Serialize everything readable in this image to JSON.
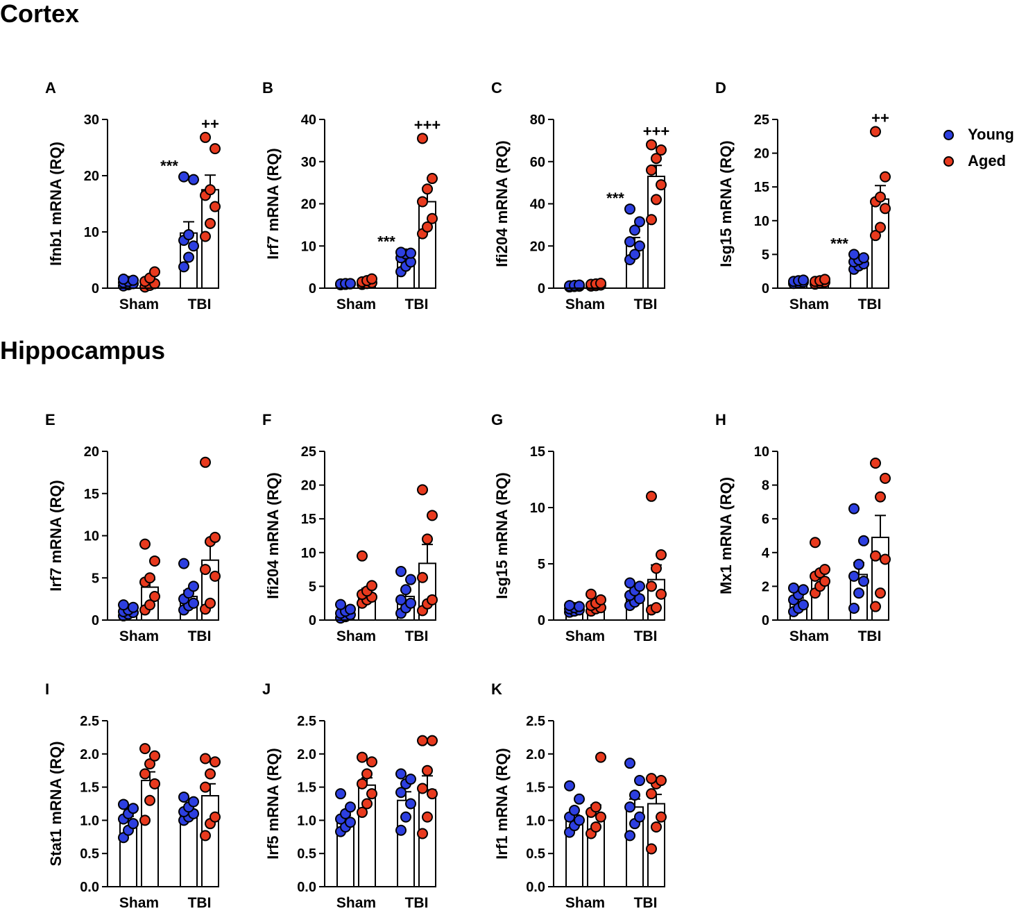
{
  "headings": {
    "cortex": "Cortex",
    "hippocampus": "Hippocampus"
  },
  "legend": [
    {
      "label": "Young",
      "color": "#2d3fe0"
    },
    {
      "label": "Aged",
      "color": "#e83a1e"
    }
  ],
  "colors": {
    "young": "#2d3fe0",
    "aged": "#e83a1e",
    "axis": "#000000",
    "bar_fill": "#ffffff"
  },
  "chart_data": [
    {
      "type": "bar",
      "panel": "A",
      "ylabel": "Ifnb1 mRNA (RQ)",
      "ylim": [
        0,
        30
      ],
      "yticks": [
        0,
        10,
        20,
        30
      ],
      "tick_labels": [
        "0",
        "10",
        "20",
        "30"
      ],
      "groups": [
        "Sham",
        "TBI"
      ],
      "series": [
        {
          "name": "Young",
          "means": [
            1.0,
            9.8
          ],
          "sem": [
            0.3,
            2.0
          ],
          "points": [
            [
              0.4,
              0.6,
              0.8,
              1.0,
              1.2,
              1.4,
              1.6
            ],
            [
              3.8,
              5.5,
              7.5,
              8.5,
              9.5,
              19.3,
              19.8
            ]
          ],
          "annotations": [
            "",
            "***"
          ]
        },
        {
          "name": "Aged",
          "means": [
            1.2,
            17.5
          ],
          "sem": [
            0.4,
            2.6
          ],
          "points": [
            [
              0.2,
              0.5,
              0.8,
              1.2,
              1.8,
              2.9
            ],
            [
              9.2,
              11.5,
              14.5,
              16.5,
              17.5,
              24.8,
              26.8
            ]
          ],
          "annotations": [
            "",
            "++"
          ]
        }
      ]
    },
    {
      "type": "bar",
      "panel": "B",
      "ylabel": "Irf7 mRNA (RQ)",
      "ylim": [
        0,
        40
      ],
      "yticks": [
        0,
        10,
        20,
        30,
        40
      ],
      "tick_labels": [
        "0",
        "10",
        "20",
        "30",
        "40"
      ],
      "groups": [
        "Sham",
        "TBI"
      ],
      "series": [
        {
          "name": "Young",
          "means": [
            1.0,
            6.3
          ],
          "sem": [
            0.1,
            0.7
          ],
          "points": [
            [
              0.8,
              0.9,
              1.0,
              1.0,
              1.1,
              1.1
            ],
            [
              3.9,
              5.2,
              6.2,
              7.2,
              8.1,
              8.3,
              8.5
            ]
          ],
          "annotations": [
            "",
            "***"
          ]
        },
        {
          "name": "Aged",
          "means": [
            1.4,
            20.5
          ],
          "sem": [
            0.2,
            3.2
          ],
          "points": [
            [
              0.9,
              1.1,
              1.3,
              1.5,
              1.8,
              2.2
            ],
            [
              12.9,
              14.5,
              16.5,
              20.5,
              23.5,
              26.0,
              35.5
            ]
          ],
          "annotations": [
            "",
            "+++"
          ]
        }
      ]
    },
    {
      "type": "bar",
      "panel": "C",
      "ylabel": "Ifi204 mRNA (RQ)",
      "ylim": [
        0,
        80
      ],
      "yticks": [
        0,
        20,
        40,
        60,
        80
      ],
      "tick_labels": [
        "0",
        "20",
        "40",
        "60",
        "80"
      ],
      "groups": [
        "Sham",
        "TBI"
      ],
      "series": [
        {
          "name": "Young",
          "means": [
            1.0,
            21.0
          ],
          "sem": [
            0.2,
            3.0
          ],
          "points": [
            [
              0.6,
              0.8,
              0.9,
              1.1,
              1.3,
              1.5
            ],
            [
              13.5,
              16.0,
              20.0,
              22.0,
              27.5,
              31.5,
              37.5
            ]
          ],
          "annotations": [
            "",
            "***"
          ]
        },
        {
          "name": "Aged",
          "means": [
            1.6,
            53.0
          ],
          "sem": [
            0.3,
            5.2
          ],
          "points": [
            [
              1.0,
              1.2,
              1.5,
              1.8,
              2.0,
              2.3
            ],
            [
              32.5,
              42.0,
              49.0,
              56.0,
              61.5,
              65.5,
              68.0
            ]
          ],
          "annotations": [
            "",
            "+++"
          ]
        }
      ]
    },
    {
      "type": "bar",
      "panel": "D",
      "ylabel": "Isg15 mRNA (RQ)",
      "ylim": [
        0,
        25
      ],
      "yticks": [
        0,
        5,
        10,
        15,
        20,
        25
      ],
      "tick_labels": [
        "0",
        "5",
        "10",
        "15",
        "20",
        "25"
      ],
      "groups": [
        "Sham",
        "TBI"
      ],
      "series": [
        {
          "name": "Young",
          "means": [
            1.0,
            3.9
          ],
          "sem": [
            0.1,
            0.3
          ],
          "points": [
            [
              0.7,
              0.8,
              0.9,
              1.0,
              1.1,
              1.2
            ],
            [
              2.8,
              3.3,
              3.6,
              3.9,
              4.2,
              4.5,
              5.0
            ]
          ],
          "annotations": [
            "",
            "***"
          ]
        },
        {
          "name": "Aged",
          "means": [
            1.0,
            13.2
          ],
          "sem": [
            0.1,
            2.0
          ],
          "points": [
            [
              0.6,
              0.8,
              0.9,
              1.0,
              1.1,
              1.3
            ],
            [
              7.8,
              9.0,
              11.8,
              12.8,
              13.5,
              16.5,
              23.2
            ]
          ],
          "annotations": [
            "",
            "++"
          ]
        }
      ]
    },
    {
      "type": "bar",
      "panel": "E",
      "ylabel": "Irf7 mRNA (RQ)",
      "ylim": [
        0,
        20
      ],
      "yticks": [
        0,
        5,
        10,
        15,
        20
      ],
      "tick_labels": [
        "0",
        "5",
        "10",
        "15",
        "20"
      ],
      "groups": [
        "Sham",
        "TBI"
      ],
      "series": [
        {
          "name": "Young",
          "means": [
            1.0,
            2.8
          ],
          "sem": [
            0.2,
            0.7
          ],
          "points": [
            [
              0.5,
              0.7,
              0.9,
              1.0,
              1.2,
              1.5,
              1.8
            ],
            [
              1.2,
              1.7,
              2.0,
              2.5,
              3.2,
              4.0,
              6.7
            ]
          ],
          "annotations": [
            "",
            ""
          ]
        },
        {
          "name": "Aged",
          "means": [
            3.9,
            7.1
          ],
          "sem": [
            0.9,
            2.1
          ],
          "points": [
            [
              1.2,
              1.8,
              2.8,
              4.5,
              5.0,
              7.0,
              9.0
            ],
            [
              1.3,
              2.0,
              5.2,
              6.0,
              9.3,
              9.8,
              18.7
            ]
          ],
          "annotations": [
            "",
            ""
          ]
        }
      ]
    },
    {
      "type": "bar",
      "panel": "F",
      "ylabel": "Ifi204 mRNA (RQ)",
      "ylim": [
        0,
        25
      ],
      "yticks": [
        0,
        5,
        10,
        15,
        20,
        25
      ],
      "tick_labels": [
        "0",
        "5",
        "10",
        "15",
        "20",
        "25"
      ],
      "groups": [
        "Sham",
        "TBI"
      ],
      "series": [
        {
          "name": "Young",
          "means": [
            1.0,
            3.5
          ],
          "sem": [
            0.3,
            0.9
          ],
          "points": [
            [
              0.3,
              0.5,
              0.8,
              1.0,
              1.3,
              1.6,
              2.3
            ],
            [
              1.0,
              1.8,
              2.5,
              3.0,
              4.5,
              6.0,
              7.2
            ]
          ],
          "annotations": [
            "",
            ""
          ]
        },
        {
          "name": "Aged",
          "means": [
            3.9,
            8.4
          ],
          "sem": [
            0.8,
            2.8
          ],
          "points": [
            [
              2.5,
              3.0,
              3.4,
              3.8,
              4.3,
              5.1,
              9.5
            ],
            [
              1.4,
              2.4,
              3.0,
              6.3,
              12.0,
              15.5,
              19.3
            ]
          ],
          "annotations": [
            "",
            ""
          ]
        }
      ]
    },
    {
      "type": "bar",
      "panel": "G",
      "ylabel": "Isg15 mRNA (RQ)",
      "ylim": [
        0,
        15
      ],
      "yticks": [
        0,
        5,
        10,
        15
      ],
      "tick_labels": [
        "0",
        "5",
        "10",
        "15"
      ],
      "groups": [
        "Sham",
        "TBI"
      ],
      "series": [
        {
          "name": "Young",
          "means": [
            1.0,
            2.2
          ],
          "sem": [
            0.1,
            0.3
          ],
          "points": [
            [
              0.7,
              0.8,
              0.9,
              1.0,
              1.1,
              1.2,
              1.3
            ],
            [
              1.3,
              1.6,
              1.9,
              2.2,
              2.6,
              3.0,
              3.3
            ]
          ],
          "annotations": [
            "",
            ""
          ]
        },
        {
          "name": "Aged",
          "means": [
            1.3,
            3.6
          ],
          "sem": [
            0.2,
            1.3
          ],
          "points": [
            [
              0.8,
              1.0,
              1.1,
              1.3,
              1.5,
              1.8,
              2.3
            ],
            [
              0.9,
              1.1,
              2.3,
              3.0,
              4.6,
              5.8,
              11.0
            ]
          ],
          "annotations": [
            "",
            ""
          ]
        }
      ]
    },
    {
      "type": "bar",
      "panel": "H",
      "ylabel": "Mx1 mRNA (RQ)",
      "ylim": [
        0,
        10
      ],
      "yticks": [
        0,
        2,
        4,
        6,
        8,
        10
      ],
      "tick_labels": [
        "0",
        "2",
        "4",
        "6",
        "8",
        "10"
      ],
      "groups": [
        "Sham",
        "TBI"
      ],
      "series": [
        {
          "name": "Young",
          "means": [
            1.1,
            2.7
          ],
          "sem": [
            0.2,
            0.7
          ],
          "points": [
            [
              0.5,
              0.7,
              0.9,
              1.2,
              1.5,
              1.8,
              1.9
            ],
            [
              0.7,
              1.6,
              2.3,
              2.6,
              3.3,
              4.7,
              6.6
            ]
          ],
          "annotations": [
            "",
            ""
          ]
        },
        {
          "name": "Aged",
          "means": [
            2.5,
            4.9
          ],
          "sem": [
            0.3,
            1.3
          ],
          "points": [
            [
              1.6,
              2.0,
              2.3,
              2.6,
              2.8,
              3.0,
              4.6
            ],
            [
              0.8,
              1.6,
              3.6,
              3.8,
              7.3,
              8.4,
              9.3
            ]
          ],
          "annotations": [
            "",
            ""
          ]
        }
      ]
    },
    {
      "type": "bar",
      "panel": "I",
      "ylabel": "Stat1 mRNA (RQ)",
      "ylim": [
        0,
        2.5
      ],
      "yticks": [
        0,
        0.5,
        1.0,
        1.5,
        2.0,
        2.5
      ],
      "tick_labels": [
        "0.0",
        "0.5",
        "1.0",
        "1.5",
        "2.0",
        "2.5"
      ],
      "groups": [
        "Sham",
        "TBI"
      ],
      "series": [
        {
          "name": "Young",
          "means": [
            1.0,
            1.12
          ],
          "sem": [
            0.06,
            0.05
          ],
          "points": [
            [
              0.74,
              0.85,
              0.95,
              1.02,
              1.1,
              1.18,
              1.24
            ],
            [
              1.0,
              1.05,
              1.1,
              1.13,
              1.2,
              1.28,
              1.35
            ]
          ],
          "annotations": [
            "",
            ""
          ]
        },
        {
          "name": "Aged",
          "means": [
            1.6,
            1.37
          ],
          "sem": [
            0.13,
            0.18
          ],
          "points": [
            [
              1.0,
              1.3,
              1.55,
              1.7,
              1.85,
              1.97,
              2.08
            ],
            [
              0.77,
              0.95,
              1.05,
              1.5,
              1.7,
              1.88,
              1.93
            ]
          ],
          "annotations": [
            "",
            ""
          ]
        }
      ]
    },
    {
      "type": "bar",
      "panel": "J",
      "ylabel": "Irf5 mRNA (RQ)",
      "ylim": [
        0,
        2.5
      ],
      "yticks": [
        0,
        0.5,
        1.0,
        1.5,
        2.0,
        2.5
      ],
      "tick_labels": [
        "0.0",
        "0.5",
        "1.0",
        "1.5",
        "2.0",
        "2.5"
      ],
      "groups": [
        "Sham",
        "TBI"
      ],
      "series": [
        {
          "name": "Young",
          "means": [
            1.0,
            1.3
          ],
          "sem": [
            0.07,
            0.13
          ],
          "points": [
            [
              0.83,
              0.9,
              0.97,
              1.02,
              1.1,
              1.2,
              1.4
            ],
            [
              0.85,
              1.05,
              1.25,
              1.42,
              1.55,
              1.62,
              1.7
            ]
          ],
          "annotations": [
            "",
            ""
          ]
        },
        {
          "name": "Aged",
          "means": [
            1.53,
            1.46
          ],
          "sem": [
            0.11,
            0.21
          ],
          "points": [
            [
              1.12,
              1.25,
              1.4,
              1.55,
              1.7,
              1.88,
              1.95
            ],
            [
              0.8,
              1.05,
              1.4,
              1.48,
              1.75,
              2.2,
              2.2
            ]
          ],
          "annotations": [
            "",
            ""
          ]
        }
      ]
    },
    {
      "type": "bar",
      "panel": "K",
      "ylabel": "Irf1 mRNA (RQ)",
      "ylim": [
        0,
        2.5
      ],
      "yticks": [
        0,
        0.5,
        1.0,
        1.5,
        2.0,
        2.5
      ],
      "tick_labels": [
        "0.0",
        "0.5",
        "1.0",
        "1.5",
        "2.0",
        "2.5"
      ],
      "groups": [
        "Sham",
        "TBI"
      ],
      "series": [
        {
          "name": "Young",
          "means": [
            1.0,
            1.2
          ],
          "sem": [
            0.08,
            0.12
          ],
          "points": [
            [
              0.82,
              0.92,
              1.0,
              1.05,
              1.15,
              1.32,
              1.52
            ],
            [
              0.77,
              0.95,
              1.05,
              1.2,
              1.38,
              1.6,
              1.86
            ]
          ],
          "annotations": [
            "",
            ""
          ]
        },
        {
          "name": "Aged",
          "means": [
            1.1,
            1.25
          ],
          "sem": [
            0.13,
            0.14
          ],
          "points": [
            [
              0.8,
              0.9,
              1.05,
              1.12,
              1.2,
              1.95
            ],
            [
              0.57,
              0.9,
              1.05,
              1.4,
              1.55,
              1.6,
              1.63
            ]
          ],
          "annotations": [
            "",
            ""
          ]
        }
      ]
    }
  ]
}
